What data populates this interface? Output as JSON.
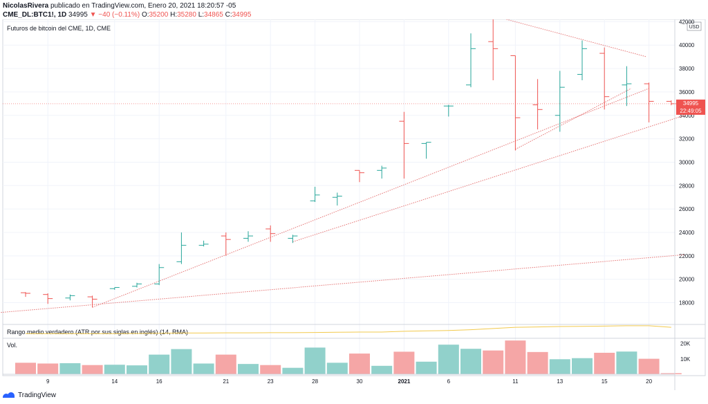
{
  "header": {
    "line1_author": "NicolasRivera",
    "line1_rest": "publicado en TradingView.com, Enero 20, 2021 18:20:57 -05",
    "symbol": "CME_DL:BTC1!, 1D",
    "last": "34995",
    "change": "−40 (−0.11%)",
    "o_label": "O:",
    "o": "35200",
    "h_label": "H:",
    "h": "35280",
    "l_label": "L:",
    "l": "34865",
    "c_label": "C:",
    "c": "34995"
  },
  "footer": {
    "brand": "TradingView"
  },
  "colors": {
    "up": "#26a69a",
    "down": "#ef5350",
    "up_vol": "#91d1cb",
    "down_vol": "#f5a6a6",
    "atr": "#f2c94c",
    "trend": "#e57373"
  },
  "chart_data": {
    "type": "ohlc",
    "title": "Futuros de bitcoin del CME, 1D, CME",
    "currency": "USD",
    "ylim": [
      16200,
      42200
    ],
    "y_ticks": [
      18000,
      20000,
      22000,
      24000,
      26000,
      28000,
      30000,
      32000,
      34000,
      36000,
      38000,
      40000,
      42000
    ],
    "y_tick_labels": [
      "18000",
      "20000",
      "22000",
      "24000",
      "26000",
      "28000",
      "30000",
      "32000",
      "34000",
      "36000",
      "38000",
      "40000",
      "42000"
    ],
    "x_ticks": [
      {
        "index": 1,
        "label": "9"
      },
      {
        "index": 4,
        "label": "14"
      },
      {
        "index": 6,
        "label": "16"
      },
      {
        "index": 9,
        "label": "21"
      },
      {
        "index": 11,
        "label": "23"
      },
      {
        "index": 13,
        "label": "28"
      },
      {
        "index": 15,
        "label": "30"
      },
      {
        "index": 17,
        "label": "2021"
      },
      {
        "index": 19,
        "label": "6"
      },
      {
        "index": 22,
        "label": "11"
      },
      {
        "index": 24,
        "label": "13"
      },
      {
        "index": 26,
        "label": "15"
      },
      {
        "index": 28,
        "label": "20"
      }
    ],
    "bars": [
      {
        "o": 18850,
        "h": 18900,
        "l": 18500,
        "c": 18800
      },
      {
        "o": 18700,
        "h": 18800,
        "l": 17900,
        "c": 18350
      },
      {
        "o": 18400,
        "h": 18700,
        "l": 18200,
        "c": 18600
      },
      {
        "o": 18500,
        "h": 18600,
        "l": 17600,
        "c": 18300
      },
      {
        "o": 19200,
        "h": 19300,
        "l": 19100,
        "c": 19300
      },
      {
        "o": 19400,
        "h": 19700,
        "l": 19300,
        "c": 19600
      },
      {
        "o": 19600,
        "h": 21300,
        "l": 19500,
        "c": 21000
      },
      {
        "o": 21500,
        "h": 24000,
        "l": 21300,
        "c": 22900
      },
      {
        "o": 22900,
        "h": 23300,
        "l": 22800,
        "c": 23000
      },
      {
        "o": 23700,
        "h": 24000,
        "l": 22000,
        "c": 23400
      },
      {
        "o": 23500,
        "h": 24100,
        "l": 23200,
        "c": 23700
      },
      {
        "o": 24300,
        "h": 24600,
        "l": 23200,
        "c": 23900
      },
      {
        "o": 23500,
        "h": 23800,
        "l": 23100,
        "c": 23700
      },
      {
        "o": 26700,
        "h": 27900,
        "l": 26600,
        "c": 27200
      },
      {
        "o": 27000,
        "h": 27400,
        "l": 26300,
        "c": 27100
      },
      {
        "o": 29300,
        "h": 29300,
        "l": 28300,
        "c": 29100
      },
      {
        "o": 29300,
        "h": 29700,
        "l": 28600,
        "c": 29500
      },
      {
        "o": 33500,
        "h": 34300,
        "l": 28600,
        "c": 31600
      },
      {
        "o": 31600,
        "h": 31700,
        "l": 30300,
        "c": 31700
      },
      {
        "o": 34800,
        "h": 34900,
        "l": 33900,
        "c": 34800
      },
      {
        "o": 36600,
        "h": 41000,
        "l": 36400,
        "c": 39700
      },
      {
        "o": 40300,
        "h": 42200,
        "l": 37000,
        "c": 39700
      },
      {
        "o": 39100,
        "h": 39100,
        "l": 31000,
        "c": 33800
      },
      {
        "o": 34900,
        "h": 37100,
        "l": 32800,
        "c": 34500
      },
      {
        "o": 34000,
        "h": 37800,
        "l": 32600,
        "c": 36400
      },
      {
        "o": 37500,
        "h": 40400,
        "l": 37000,
        "c": 39700
      },
      {
        "o": 39300,
        "h": 39800,
        "l": 34500,
        "c": 35600
      },
      {
        "o": 36600,
        "h": 38200,
        "l": 34800,
        "c": 36700
      },
      {
        "o": 36700,
        "h": 36800,
        "l": 33400,
        "c": 35200
      },
      {
        "o": 35200,
        "h": 35280,
        "l": 34865,
        "c": 34995
      }
    ],
    "last_price_label": "34995",
    "countdown_label": "22:49:05",
    "atr": {
      "title": "Rango medio verdadero (ATR por sus siglas en inglés) (14, RMA)",
      "values": [
        1.0,
        1.0,
        1.0,
        1.0,
        1.0,
        1.05,
        1.1,
        1.15,
        1.15,
        1.2,
        1.2,
        1.25,
        1.25,
        1.3,
        1.35,
        1.4,
        1.4,
        1.6,
        1.7,
        1.8,
        2.0,
        2.3,
        2.6,
        2.7,
        2.8,
        2.85,
        2.9,
        3.0,
        3.0,
        2.6
      ]
    },
    "volume": {
      "label": "Vol.",
      "y_ticks": [
        10000,
        20000
      ],
      "y_tick_labels": [
        "10K",
        "20K"
      ],
      "ymax": 23000,
      "values": [
        7500,
        7000,
        7200,
        6000,
        6200,
        5800,
        12800,
        16400,
        7000,
        12800,
        6700,
        6000,
        4200,
        17400,
        7500,
        13500,
        5500,
        14700,
        8200,
        19300,
        16600,
        15500,
        22000,
        14500,
        9800,
        10500,
        14000,
        14800,
        10100,
        700
      ]
    },
    "trendlines": [
      {
        "from": {
          "i": -1.2,
          "v": 17150
        },
        "to": {
          "i": 29.6,
          "v": 22100
        }
      },
      {
        "from": {
          "i": 3.0,
          "v": 17600
        },
        "to": {
          "i": 28.0,
          "v": 36300
        }
      },
      {
        "from": {
          "i": 12.0,
          "v": 23200
        },
        "to": {
          "i": 29.6,
          "v": 34000
        }
      },
      {
        "from": {
          "i": 22.0,
          "v": 31100
        },
        "to": {
          "i": 27.2,
          "v": 36300
        }
      },
      {
        "from": {
          "i": 21.6,
          "v": 42200
        },
        "to": {
          "i": 27.9,
          "v": 39000
        }
      }
    ]
  }
}
